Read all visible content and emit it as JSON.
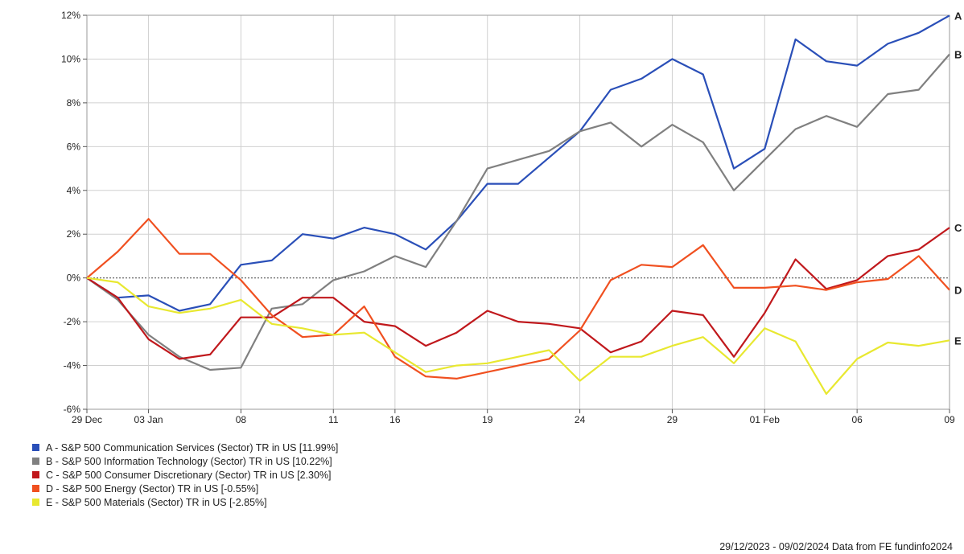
{
  "chart_data": {
    "type": "line",
    "xlabel": "",
    "ylabel": "",
    "ylim": [
      -6,
      12
    ],
    "yticks": [
      12,
      10,
      8,
      6,
      4,
      2,
      0,
      -2,
      -4,
      -6
    ],
    "ytick_labels": [
      "12%",
      "10%",
      "8%",
      "6%",
      "4%",
      "2%",
      "0%",
      "-2%",
      "-4%",
      "-6%"
    ],
    "x": [
      "2023-12-29",
      "2024-01-02",
      "2024-01-03",
      "2024-01-04",
      "2024-01-05",
      "2024-01-08",
      "2024-01-09",
      "2024-01-10",
      "2024-01-11",
      "2024-01-12",
      "2024-01-16",
      "2024-01-17",
      "2024-01-18",
      "2024-01-19",
      "2024-01-22",
      "2024-01-23",
      "2024-01-24",
      "2024-01-25",
      "2024-01-26",
      "2024-01-29",
      "2024-01-30",
      "2024-01-31",
      "2024-02-01",
      "2024-02-02",
      "2024-02-05",
      "2024-02-06",
      "2024-02-07",
      "2024-02-08",
      "2024-02-09"
    ],
    "xticks": [
      {
        "x": "2023-12-29",
        "label": "29 Dec"
      },
      {
        "x": "2024-01-03",
        "label": "03 Jan"
      },
      {
        "x": "2024-01-08",
        "label": "08"
      },
      {
        "x": "2024-01-11",
        "label": "11"
      },
      {
        "x": "2024-01-16",
        "label": "16"
      },
      {
        "x": "2024-01-19",
        "label": "19"
      },
      {
        "x": "2024-01-24",
        "label": "24"
      },
      {
        "x": "2024-01-29",
        "label": "29"
      },
      {
        "x": "2024-02-01",
        "label": "01 Feb"
      },
      {
        "x": "2024-02-06",
        "label": "06"
      },
      {
        "x": "2024-02-09",
        "label": "09"
      }
    ],
    "grid": true,
    "zero_line": "dotted",
    "series": [
      {
        "name": "A - S&P 500 Communication Services (Sector) TR in US [11.99%]",
        "end_label": "A",
        "color": "#2a4fb8",
        "values": [
          0,
          -0.9,
          -0.8,
          -1.5,
          -1.2,
          0.6,
          0.8,
          2.0,
          1.8,
          2.3,
          2.0,
          1.3,
          2.6,
          4.3,
          4.3,
          5.5,
          6.7,
          8.6,
          9.1,
          10.0,
          9.3,
          5.0,
          5.9,
          10.9,
          9.9,
          9.7,
          10.7,
          11.2,
          11.99
        ]
      },
      {
        "name": "B - S&P 500 Information Technology (Sector) TR in US [10.22%]",
        "end_label": "B",
        "color": "#808080",
        "values": [
          0,
          -1.0,
          -2.6,
          -3.6,
          -4.2,
          -4.1,
          -1.4,
          -1.2,
          -0.1,
          0.3,
          1.0,
          0.5,
          2.6,
          5.0,
          5.4,
          5.8,
          6.7,
          7.1,
          6.0,
          7.0,
          6.2,
          4.0,
          5.4,
          6.8,
          7.4,
          6.9,
          8.4,
          8.6,
          10.22
        ]
      },
      {
        "name": "C - S&P 500 Consumer Discretionary (Sector) TR in US [2.30%]",
        "end_label": "C",
        "color": "#c0181c",
        "values": [
          0,
          -0.9,
          -2.8,
          -3.7,
          -3.5,
          -1.8,
          -1.8,
          -0.9,
          -0.9,
          -2.0,
          -2.2,
          -3.1,
          -2.5,
          -1.5,
          -2.0,
          -2.1,
          -2.3,
          -3.4,
          -2.9,
          -1.5,
          -1.7,
          -3.6,
          -1.6,
          0.85,
          -0.5,
          -0.1,
          1.0,
          1.3,
          2.3
        ]
      },
      {
        "name": "D - S&P 500 Energy (Sector) TR in US [-0.55%]",
        "end_label": "D",
        "color": "#f05020",
        "values": [
          0,
          1.2,
          2.7,
          1.1,
          1.1,
          -0.1,
          -1.7,
          -2.7,
          -2.6,
          -1.3,
          -3.6,
          -4.5,
          -4.6,
          -4.3,
          -4.0,
          -3.7,
          -2.4,
          -0.1,
          0.6,
          0.5,
          1.5,
          -0.45,
          -0.45,
          -0.35,
          -0.55,
          -0.2,
          -0.05,
          1.0,
          -0.55
        ]
      },
      {
        "name": "E - S&P 500 Materials (Sector) TR in US [-2.85%]",
        "end_label": "E",
        "color": "#e8e830",
        "values": [
          0,
          -0.2,
          -1.3,
          -1.6,
          -1.4,
          -1.0,
          -2.1,
          -2.3,
          -2.6,
          -2.5,
          -3.4,
          -4.3,
          -4.0,
          -3.9,
          -3.6,
          -3.3,
          -4.7,
          -3.6,
          -3.6,
          -3.1,
          -2.7,
          -3.9,
          -2.3,
          -2.9,
          -5.3,
          -3.7,
          -2.95,
          -3.1,
          -2.85
        ]
      }
    ],
    "legend_position": "bottom-left"
  },
  "footer_text": "29/12/2023 - 09/02/2024 Data from FE fundinfo2024"
}
